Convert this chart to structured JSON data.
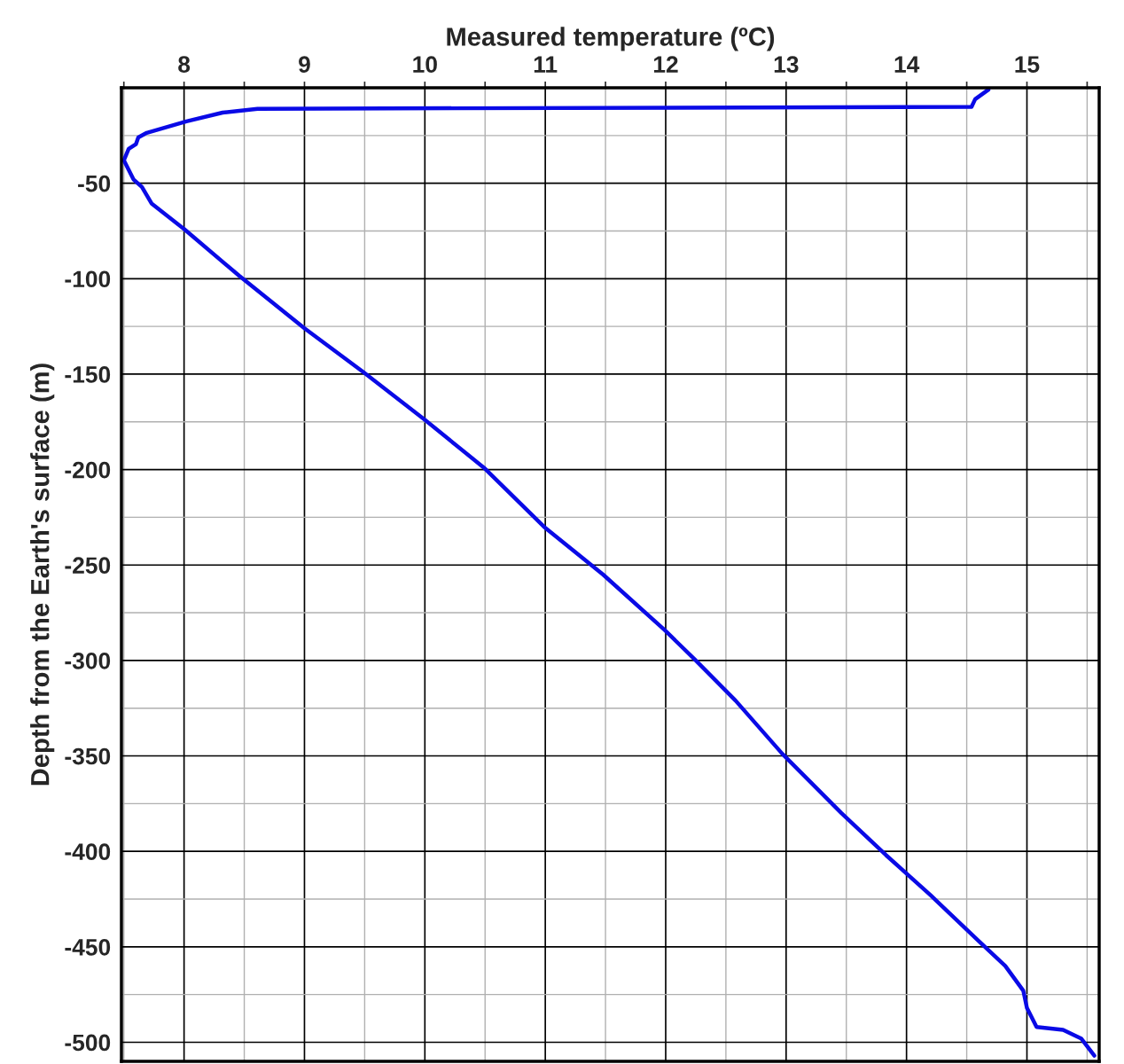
{
  "chart_data": {
    "type": "line",
    "xlabel": "Measured temperature (ºC)",
    "ylabel": "Depth from the Earth's surface (m)",
    "series": [
      {
        "color": "#0a0ae6",
        "x": [
          14.68,
          14.57,
          14.54,
          8.61,
          8.32,
          8.02,
          7.69,
          7.62,
          7.6,
          7.54,
          7.5,
          7.54,
          7.58,
          7.65,
          7.73,
          8.0,
          8.46,
          9.0,
          9.49,
          10.0,
          10.49,
          10.99,
          11.48,
          11.99,
          12.25,
          12.58,
          12.97,
          13.46,
          13.83,
          14.2,
          14.6,
          14.82,
          14.97,
          15.0,
          15.08,
          15.3,
          15.45,
          15.56
        ],
        "values": [
          -1,
          -6,
          -10,
          -11,
          -13,
          -17.6,
          -23.6,
          -26,
          -29.6,
          -32,
          -38,
          -43,
          -48,
          -52,
          -60.6,
          -74,
          -98.6,
          -126,
          -149,
          -174,
          -199,
          -230,
          -255,
          -284,
          -300,
          -321,
          -349,
          -380,
          -402,
          -423,
          -447,
          -460,
          -473,
          -482,
          -492,
          -493.5,
          -498,
          -507
        ]
      }
    ],
    "xlim": [
      7.48,
      15.6
    ],
    "xticks": [
      8,
      9,
      10,
      11,
      12,
      13,
      14,
      15
    ],
    "ylim": [
      -510,
      0
    ],
    "yticks": [
      -50,
      -100,
      -150,
      -200,
      -250,
      -300,
      -350,
      -400,
      -450,
      -500
    ],
    "grid": true,
    "line_style": "solid"
  }
}
